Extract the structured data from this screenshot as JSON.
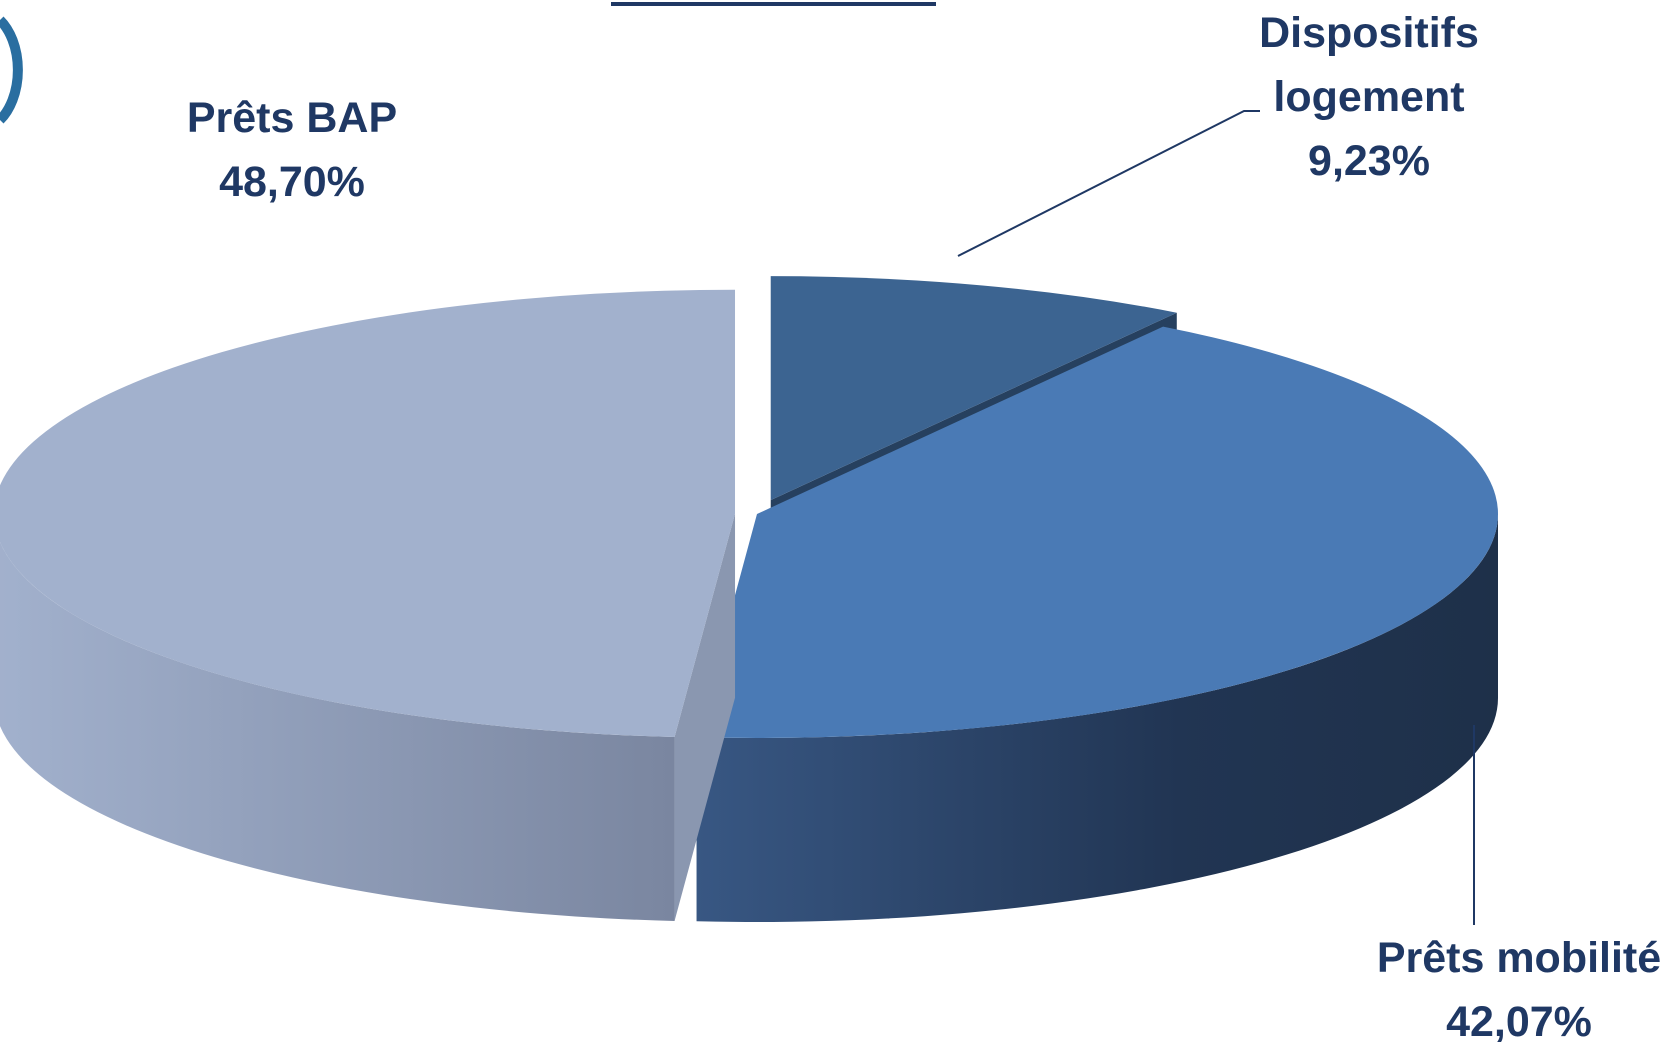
{
  "chart_data": {
    "type": "pie3d",
    "categories": [
      "Dispositifs logement",
      "Prêts mobilité",
      "Prêts BAP"
    ],
    "values": [
      9.23,
      42.07,
      48.7
    ],
    "value_labels": [
      "9,23%",
      "42,07%",
      "48,70%"
    ],
    "colors": [
      "#3c6491",
      "#4a7ab5",
      "#a2b1cd"
    ]
  }
}
